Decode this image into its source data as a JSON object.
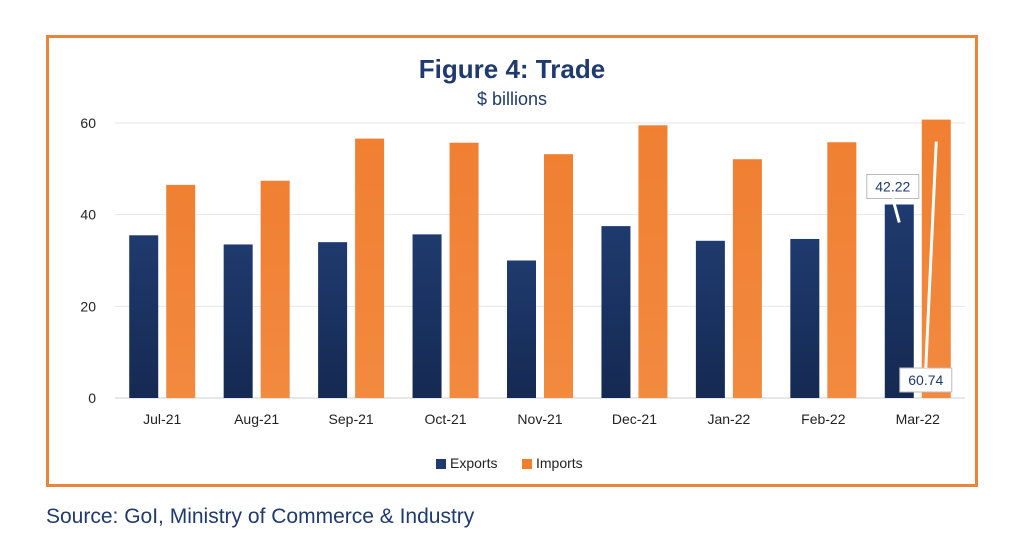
{
  "chart_data": {
    "type": "bar",
    "title": "Figure 4: Trade",
    "subtitle": "$ billions",
    "categories": [
      "Jul-21",
      "Aug-21",
      "Sep-21",
      "Oct-21",
      "Nov-21",
      "Dec-21",
      "Jan-22",
      "Feb-22",
      "Mar-22"
    ],
    "series": [
      {
        "name": "Exports",
        "color": "#1f3a6e",
        "values": [
          35.5,
          33.5,
          34,
          35.7,
          30,
          37.5,
          34.3,
          34.7,
          42.22
        ]
      },
      {
        "name": "Imports",
        "color": "#f07f32",
        "values": [
          46.5,
          47.4,
          56.6,
          55.7,
          53.2,
          59.5,
          52.1,
          55.8,
          60.74
        ]
      }
    ],
    "ylim": [
      0,
      60
    ],
    "yticks": [
      0,
      20,
      40,
      60
    ],
    "grid": true,
    "legend_position": "bottom",
    "annotations": [
      {
        "series": "Exports",
        "category": "Mar-22",
        "text": "42.22"
      },
      {
        "series": "Imports",
        "category": "Mar-22",
        "text": "60.74"
      }
    ]
  },
  "source": "Source: GoI, Ministry of Commerce & Industry"
}
